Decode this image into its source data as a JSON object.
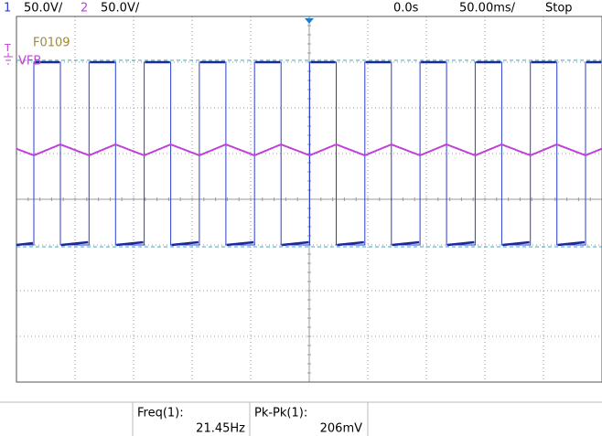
{
  "header": {
    "ch1": "1",
    "ch1_scale": "50.0V/",
    "ch2": "2",
    "ch2_scale": "50.0V/",
    "trigger_time": "0.0s",
    "timebase": "50.00ms/",
    "status": "Stop"
  },
  "markers": {
    "trigger": "T",
    "label": "F0109",
    "ch2_label": "VFB"
  },
  "measurements": [
    {
      "label": "Freq(1):",
      "value": "21.45Hz"
    },
    {
      "label": "Pk-Pk(1):",
      "value": "206mV"
    }
  ]
}
